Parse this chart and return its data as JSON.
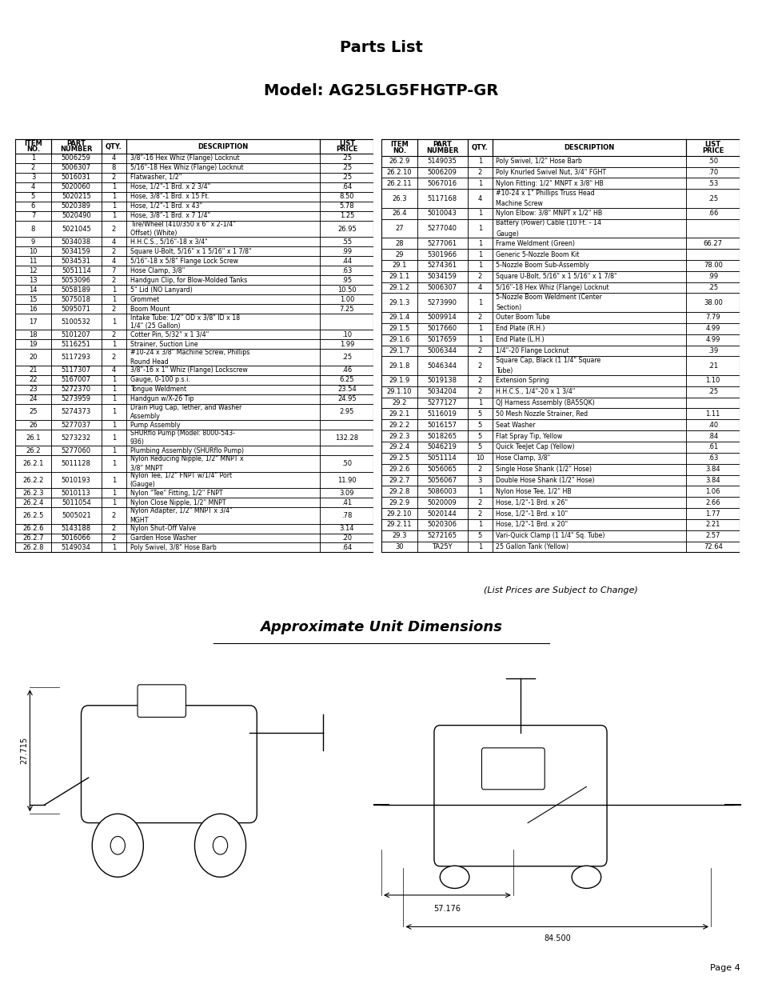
{
  "title_line1": "Parts List",
  "title_line2": "Model: AG25LG5FHGTP-GR",
  "page_number": "Page 4",
  "dimensions_title": "Approximate Unit Dimensions",
  "dim_left": "27.715",
  "dim_middle": "57.176",
  "dim_right": "84.500",
  "price_note": "(List Prices are Subject to Change)",
  "col_headers": [
    "ITEM\nNO.",
    "PART\nNUMBER",
    "QTY.",
    "DESCRIPTION",
    "LIST\nPRICE"
  ],
  "left_table": [
    [
      "1",
      "5006259",
      "4",
      "3/8\"-16 Hex Whiz (Flange) Locknut",
      ".25"
    ],
    [
      "2",
      "5006307",
      "8",
      "5/16\"-18 Hex Whiz (Flange) Locknut",
      ".25"
    ],
    [
      "3",
      "5016031",
      "2",
      "Flatwasher, 1/2\"",
      ".25"
    ],
    [
      "4",
      "5020060",
      "1",
      "Hose, 1/2\"-1 Brd. x 2 3/4\"",
      ".64"
    ],
    [
      "5",
      "5020215",
      "1",
      "Hose, 3/8\"-1 Brd. x 15 Ft.",
      "8.50"
    ],
    [
      "6",
      "5020389",
      "1",
      "Hose, 1/2\"-1 Brd. x 43\"",
      "5.78"
    ],
    [
      "7",
      "5020490",
      "1",
      "Hose, 3/8\"-1 Brd. x 7 1/4\"",
      "1.25"
    ],
    [
      "8",
      "5021045",
      "2",
      "Tire/Wheel (410/350 x 6\" x 2-1/4\"\nOffset) (White)",
      "26.95"
    ],
    [
      "9",
      "5034038",
      "4",
      "H.H.C.S., 5/16\"-18 x 3/4\"",
      ".55"
    ],
    [
      "10",
      "5034159",
      "2",
      "Square U-Bolt, 5/16\" x 1 5/16\" x 1 7/8\"",
      ".99"
    ],
    [
      "11",
      "5034531",
      "4",
      "5/16\"-18 x 5/8\" Flange Lock Screw",
      ".44"
    ],
    [
      "12",
      "5051114",
      "7",
      "Hose Clamp, 3/8\"",
      ".63"
    ],
    [
      "13",
      "5053096",
      "2",
      "Handgun Clip, for Blow-Molded Tanks",
      ".95"
    ],
    [
      "14",
      "5058189",
      "1",
      "5\" Lid (NO Lanyard)",
      "10.50"
    ],
    [
      "15",
      "5075018",
      "1",
      "Grommet",
      "1.00"
    ],
    [
      "16",
      "5095071",
      "2",
      "Boom Mount",
      "7.25"
    ],
    [
      "17",
      "5100532",
      "1",
      "Intake Tube: 1/2\" OD x 3/8\" ID x 18\n1/4\" (25 Gallon)",
      ""
    ],
    [
      "18",
      "5101207",
      "2",
      "Cotter Pin, 5/32\" x 1 3/4\"",
      ".10"
    ],
    [
      "19",
      "5116251",
      "1",
      "Strainer, Suction Line",
      "1.99"
    ],
    [
      "20",
      "5117293",
      "2",
      "#10-24 x 3/8\" Machine Screw, Phillips\nRound Head",
      ".25"
    ],
    [
      "21",
      "5117307",
      "4",
      "3/8\"-16 x 1\" Whiz (Flange) Lockscrew",
      ".46"
    ],
    [
      "22",
      "5167007",
      "1",
      "Gauge, 0-100 p.s.i.",
      "6.25"
    ],
    [
      "23",
      "5272370",
      "1",
      "Tongue Weldment",
      "23.54"
    ],
    [
      "24",
      "5273959",
      "1",
      "Handgun w/X-26 Tip",
      "24.95"
    ],
    [
      "25",
      "5274373",
      "1",
      "Drain Plug Cap, Tether, and Washer\nAssembly",
      "2.95"
    ],
    [
      "26",
      "5277037",
      "1",
      "Pump Assembly",
      ""
    ],
    [
      "26.1",
      "5273232",
      "1",
      "SHURflo Pump (Model: 8000-543-\n936)",
      "132.28"
    ],
    [
      "26.2",
      "5277060",
      "1",
      "Plumbing Assembly (SHURflo Pump)",
      ""
    ],
    [
      "26.2.1",
      "5011128",
      "1",
      "Nylon Reducing Nipple, 1/2\" MNPT x\n3/8\" MNPT",
      ".50"
    ],
    [
      "26.2.2",
      "5010193",
      "1",
      "Nylon Tee, 1/2\" FNPT w/1/4\" Port\n(Gauge)",
      "11.90"
    ],
    [
      "26.2.3",
      "5010113",
      "1",
      "Nylon \"Tee\" Fitting, 1/2\" FNPT",
      "3.09"
    ],
    [
      "26.2.4",
      "5011054",
      "1",
      "Nylon Close Nipple, 1/2\" MNPT",
      ".41"
    ],
    [
      "26.2.5",
      "5005021",
      "2",
      "Nylon Adapter, 1/2\" MNPT x 3/4\"\nMGHT",
      ".78"
    ],
    [
      "26.2.6",
      "5143188",
      "2",
      "Nylon Shut-Off Valve",
      "3.14"
    ],
    [
      "26.2.7",
      "5016066",
      "2",
      "Garden Hose Washer",
      ".20"
    ],
    [
      "26.2.8",
      "5149034",
      "1",
      "Poly Swivel, 3/8\" Hose Barb",
      ".64"
    ]
  ],
  "right_table": [
    [
      "26.2.9",
      "5149035",
      "1",
      "Poly Swivel, 1/2\" Hose Barb",
      ".50"
    ],
    [
      "26.2.10",
      "5006209",
      "2",
      "Poly Knurled Swivel Nut, 3/4\" FGHT",
      ".70"
    ],
    [
      "26.2.11",
      "5067016",
      "1",
      "Nylon Fitting: 1/2\" MNPT x 3/8\" HB",
      ".53"
    ],
    [
      "26.3",
      "5117168",
      "4",
      "#10-24 x 1\" Phillips Truss Head\nMachine Screw",
      ".25"
    ],
    [
      "26.4",
      "5010043",
      "1",
      "Nylon Elbow: 3/8\" MNPT x 1/2\" HB",
      ".66"
    ],
    [
      "27",
      "5277040",
      "1",
      "Battery (Power) Cable (10 Ft. - 14\nGauge)",
      ""
    ],
    [
      "28",
      "5277061",
      "1",
      "Frame Weldment (Green)",
      "66.27"
    ],
    [
      "29",
      "5301966",
      "1",
      "Generic 5-Nozzle Boom Kit",
      ""
    ],
    [
      "29.1",
      "5274361",
      "1",
      "5-Nozzle Boom Sub-Assembly",
      "78.00"
    ],
    [
      "29.1.1",
      "5034159",
      "2",
      "Square U-Bolt, 5/16\" x 1 5/16\" x 1 7/8\"",
      ".99"
    ],
    [
      "29.1.2",
      "5006307",
      "4",
      "5/16\"-18 Hex Whiz (Flange) Locknut",
      ".25"
    ],
    [
      "29.1.3",
      "5273990",
      "1",
      "5-Nozzle Boom Weldment (Center\nSection)",
      "38.00"
    ],
    [
      "29.1.4",
      "5009914",
      "2",
      "Outer Boom Tube",
      "7.79"
    ],
    [
      "29.1.5",
      "5017660",
      "1",
      "End Plate (R.H.)",
      "4.99"
    ],
    [
      "29.1.6",
      "5017659",
      "1",
      "End Plate (L.H.)",
      "4.99"
    ],
    [
      "29.1.7",
      "5006344",
      "2",
      "1/4\"-20 Flange Locknut",
      ".39"
    ],
    [
      "29.1.8",
      "5046344",
      "2",
      "Square Cap, Black (1 1/4\" Square\nTube)",
      ".21"
    ],
    [
      "29.1.9",
      "5019138",
      "2",
      "Extension Spring",
      "1.10"
    ],
    [
      "29.1.10",
      "5034204",
      "2",
      "H.H.C.S., 1/4\"-20 x 1 3/4\"",
      ".25"
    ],
    [
      "29.2",
      "5277127",
      "1",
      "QJ Harness Assembly (BA5SQK)",
      ""
    ],
    [
      "29.2.1",
      "5116019",
      "5",
      "50 Mesh Nozzle Strainer, Red",
      "1.11"
    ],
    [
      "29.2.2",
      "5016157",
      "5",
      "Seat Washer",
      ".40"
    ],
    [
      "29.2.3",
      "5018265",
      "5",
      "Flat Spray Tip, Yellow",
      ".84"
    ],
    [
      "29.2.4",
      "5046219",
      "5",
      "Quick TeeJet Cap (Yellow)",
      ".61"
    ],
    [
      "29.2.5",
      "5051114",
      "10",
      "Hose Clamp, 3/8\"",
      ".63"
    ],
    [
      "29.2.6",
      "5056065",
      "2",
      "Single Hose Shank (1/2\" Hose)",
      "3.84"
    ],
    [
      "29.2.7",
      "5056067",
      "3",
      "Double Hose Shank (1/2\" Hose)",
      "3.84"
    ],
    [
      "29.2.8",
      "5086003",
      "1",
      "Nylon Hose Tee, 1/2\" HB",
      "1.06"
    ],
    [
      "29.2.9",
      "5020009",
      "2",
      "Hose, 1/2\"-1 Brd. x 26\"",
      "2.66"
    ],
    [
      "29.2.10",
      "5020144",
      "2",
      "Hose, 1/2\"-1 Brd. x 10\"",
      "1.77"
    ],
    [
      "29.2.11",
      "5020306",
      "1",
      "Hose, 1/2\"-1 Brd. x 20\"",
      "2.21"
    ],
    [
      "29.3",
      "5272165",
      "5",
      "Vari-Quick Clamp (1 1/4\" Sq. Tube)",
      "2.57"
    ],
    [
      "30",
      "TA25Y",
      "1",
      "25 Gallon Tank (Yellow)",
      "72.64"
    ]
  ]
}
